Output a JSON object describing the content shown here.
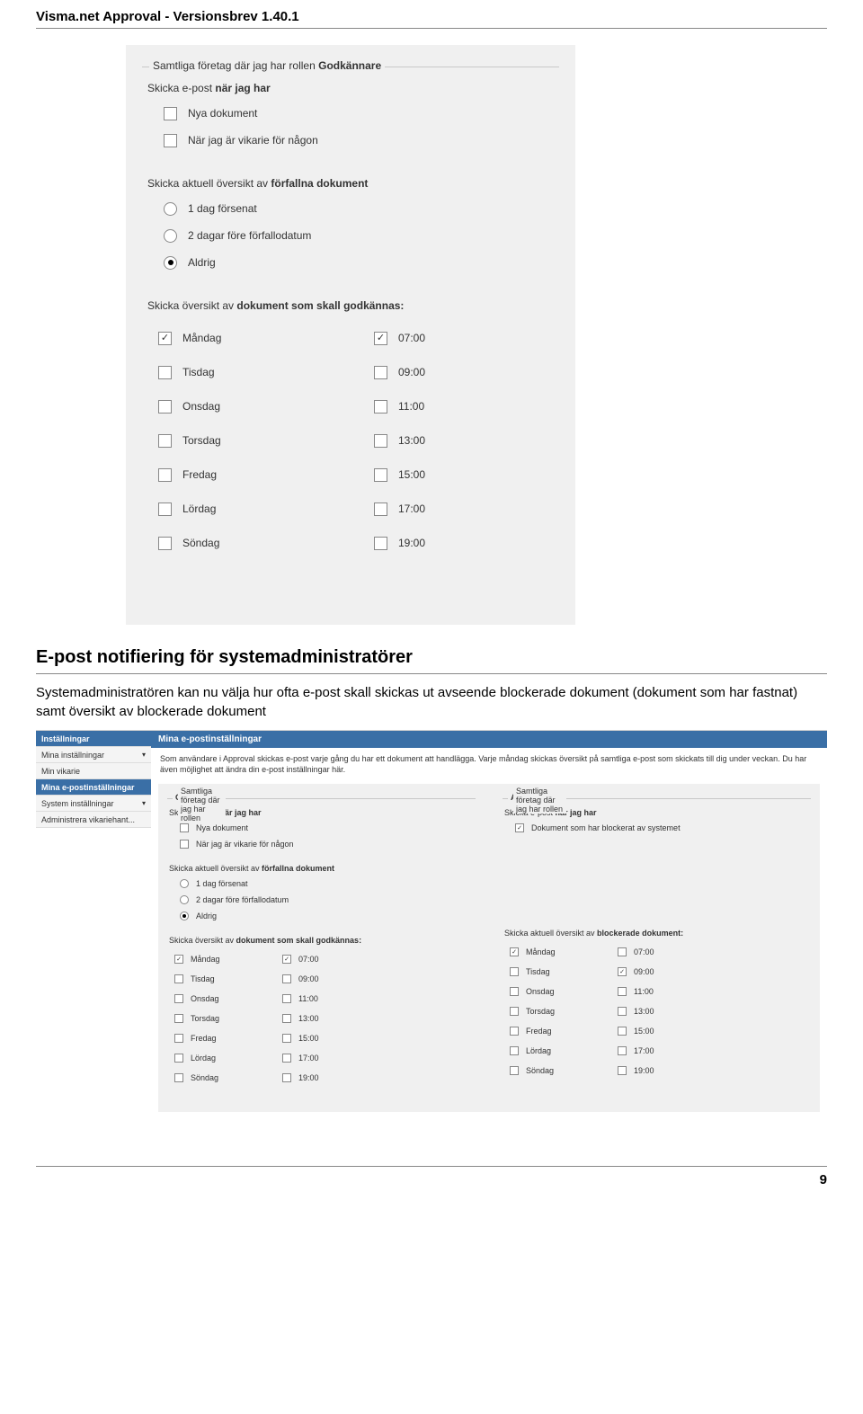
{
  "doc": {
    "header": "Visma.net Approval - Versionsbrev 1.40.1",
    "page_number": "9"
  },
  "panel1": {
    "legend_prefix": "Samtliga företag där jag har rollen ",
    "legend_bold": "Godkännare",
    "s1_prefix": "Skicka e-post ",
    "s1_bold": "när jag har",
    "cb1": "Nya dokument",
    "cb2": "När jag är vikarie för någon",
    "s2_prefix": "Skicka aktuell översikt av ",
    "s2_bold": "förfallna dokument",
    "r1": "1 dag försenat",
    "r2": "2 dagar före förfallodatum",
    "r3": "Aldrig",
    "s3_prefix": "Skicka översikt av ",
    "s3_bold": "dokument som skall godkännas:",
    "days": [
      "Måndag",
      "Tisdag",
      "Onsdag",
      "Torsdag",
      "Fredag",
      "Lördag",
      "Söndag"
    ],
    "days_checked": [
      true,
      false,
      false,
      false,
      false,
      false,
      false
    ],
    "times": [
      "07:00",
      "09:00",
      "11:00",
      "13:00",
      "15:00",
      "17:00",
      "19:00"
    ],
    "times_checked": [
      true,
      false,
      false,
      false,
      false,
      false,
      false
    ]
  },
  "section": {
    "heading": "E-post notifiering för systemadministratörer",
    "body": "Systemadministratören kan nu välja hur ofta e-post skall skickas ut avseende blockerade dokument  (dokument som har fastnat) samt översikt av  blockerade dokument"
  },
  "panel2": {
    "sidebar": {
      "header": "Inställningar",
      "items": [
        {
          "label": "Mina inställningar",
          "chev": true,
          "active": false
        },
        {
          "label": "Min vikarie",
          "chev": false,
          "active": false
        },
        {
          "label": "Mina e-postinställningar",
          "chev": false,
          "active": true
        },
        {
          "label": "System inställningar",
          "chev": true,
          "active": false
        },
        {
          "label": "Administrera vikariehant...",
          "chev": false,
          "active": false
        }
      ]
    },
    "title": "Mina e-postinställningar",
    "intro": "Som användare i Approval skickas e-post varje gång du har ett dokument att handlägga. Varje måndag skickas översikt på samtliga e-post som skickats till dig under veckan. Du har även möjlighet att ändra din e-post inställningar här.",
    "left": {
      "legend_prefix": "Samtliga företag där jag har rollen ",
      "legend_bold": "Godkännare",
      "h1_prefix": "Skicka e-post ",
      "h1_bold": "när jag har",
      "cb1": "Nya dokument",
      "cb2": "När jag är vikarie för någon",
      "h2_prefix": "Skicka aktuell översikt av ",
      "h2_bold": "förfallna dokument",
      "r1": "1 dag försenat",
      "r2": "2 dagar före förfallodatum",
      "r3": "Aldrig",
      "h3_prefix": "Skicka översikt av ",
      "h3_bold": "dokument som skall godkännas:",
      "days": [
        "Måndag",
        "Tisdag",
        "Onsdag",
        "Torsdag",
        "Fredag",
        "Lördag",
        "Söndag"
      ],
      "days_checked": [
        true,
        false,
        false,
        false,
        false,
        false,
        false
      ],
      "times": [
        "07:00",
        "09:00",
        "11:00",
        "13:00",
        "15:00",
        "17:00",
        "19:00"
      ],
      "times_checked": [
        true,
        false,
        false,
        false,
        false,
        false,
        false
      ]
    },
    "right": {
      "legend_prefix": "Samtliga företag där jag har rollen ",
      "legend_bold": "Administratör",
      "h1_prefix": "Skicka e-post ",
      "h1_bold": "när jag har",
      "cb1": "Dokument som har blockerat av systemet",
      "cb1_checked": true,
      "h3_prefix": "Skicka aktuell översikt av ",
      "h3_bold": "blockerade dokument:",
      "days": [
        "Måndag",
        "Tisdag",
        "Onsdag",
        "Torsdag",
        "Fredag",
        "Lördag",
        "Söndag"
      ],
      "days_checked": [
        true,
        false,
        false,
        false,
        false,
        false,
        false
      ],
      "times": [
        "07:00",
        "09:00",
        "11:00",
        "13:00",
        "15:00",
        "17:00",
        "19:00"
      ],
      "times_checked": [
        false,
        true,
        false,
        false,
        false,
        false,
        false
      ]
    }
  }
}
